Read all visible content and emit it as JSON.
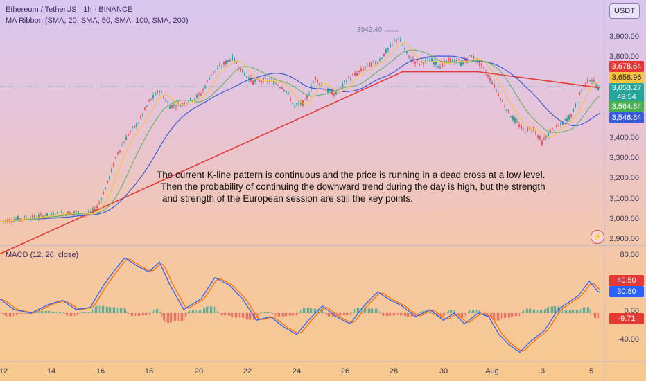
{
  "header": {
    "title": "Ethereum / TetherUS · 1h · BINANCE",
    "indicator": "MA Ribbon (SMA, 20, SMA, 50, SMA, 100, SMA, 200)",
    "currency": "USDT"
  },
  "macd_panel": {
    "label": "MACD (12, 26, close)",
    "axis": [
      "80.00",
      "40.00",
      "0.00",
      "-40.00"
    ],
    "tags": {
      "macd": "40.50",
      "signal": "30.80",
      "hist": "-9.71"
    }
  },
  "price_axis": [
    "3,900.00",
    "3,800.00",
    "3,700.00",
    "3,600.00",
    "3,500.00",
    "3,400.00",
    "3,300.00",
    "3,200.00",
    "3,100.00",
    "3,000.00",
    "2,900.00"
  ],
  "price_tags": {
    "ma200": "3,678.64",
    "last": "3,658.96",
    "current": "3,653.27",
    "countdown": "49:54",
    "ma50": "3,564.84",
    "ma100": "3,546.84"
  },
  "peak_label": "3942.49",
  "annotation": {
    "line1": "The current K-line pattern is continuous and the price is running in a dead cross at a low level.",
    "line2": "Then the probability of continuing the downward trend during the day is high, but the strength",
    "line3": "and strength of the European session are still the key points."
  },
  "time_axis": [
    "12",
    "14",
    "16",
    "18",
    "20",
    "22",
    "24",
    "26",
    "28",
    "30",
    "Aug",
    "3",
    "5"
  ],
  "colors": {
    "up": "#26a69a",
    "down": "#ef5350",
    "ma20": "#f6c343",
    "ma50": "#6bb36b",
    "ma100": "#3a5bd9",
    "ma200": "#e53935",
    "macd": "#2962ff",
    "signal": "#ff6d00"
  },
  "chart_data": {
    "type": "candlestick",
    "symbol": "Ethereum / TetherUS",
    "interval": "1h",
    "ylim": [
      2880,
      3950
    ],
    "price_keypoints": [
      [
        0,
        2990
      ],
      [
        30,
        3005
      ],
      [
        60,
        3015
      ],
      [
        90,
        3030
      ],
      [
        110,
        3035
      ],
      [
        125,
        3020
      ],
      [
        140,
        3060
      ],
      [
        155,
        3180
      ],
      [
        170,
        3330
      ],
      [
        185,
        3420
      ],
      [
        200,
        3480
      ],
      [
        215,
        3580
      ],
      [
        230,
        3640
      ],
      [
        245,
        3560
      ],
      [
        260,
        3570
      ],
      [
        275,
        3590
      ],
      [
        290,
        3620
      ],
      [
        305,
        3720
      ],
      [
        320,
        3760
      ],
      [
        335,
        3800
      ],
      [
        350,
        3730
      ],
      [
        365,
        3680
      ],
      [
        380,
        3690
      ],
      [
        395,
        3680
      ],
      [
        410,
        3650
      ],
      [
        425,
        3560
      ],
      [
        440,
        3580
      ],
      [
        455,
        3700
      ],
      [
        470,
        3640
      ],
      [
        485,
        3620
      ],
      [
        500,
        3690
      ],
      [
        515,
        3720
      ],
      [
        530,
        3760
      ],
      [
        545,
        3780
      ],
      [
        560,
        3840
      ],
      [
        575,
        3900
      ],
      [
        590,
        3800
      ],
      [
        605,
        3770
      ],
      [
        620,
        3790
      ],
      [
        635,
        3760
      ],
      [
        650,
        3790
      ],
      [
        665,
        3770
      ],
      [
        680,
        3810
      ],
      [
        695,
        3760
      ],
      [
        710,
        3680
      ],
      [
        725,
        3580
      ],
      [
        740,
        3500
      ],
      [
        755,
        3440
      ],
      [
        770,
        3450
      ],
      [
        782,
        3380
      ],
      [
        795,
        3440
      ],
      [
        810,
        3470
      ],
      [
        825,
        3520
      ],
      [
        840,
        3650
      ],
      [
        852,
        3700
      ],
      [
        863,
        3650
      ]
    ],
    "macd_keypoints": [
      [
        0,
        20
      ],
      [
        20,
        5
      ],
      [
        45,
        0
      ],
      [
        70,
        12
      ],
      [
        90,
        18
      ],
      [
        110,
        5
      ],
      [
        130,
        8
      ],
      [
        150,
        40
      ],
      [
        165,
        60
      ],
      [
        180,
        78
      ],
      [
        200,
        65
      ],
      [
        215,
        58
      ],
      [
        230,
        72
      ],
      [
        245,
        40
      ],
      [
        265,
        5
      ],
      [
        290,
        20
      ],
      [
        310,
        50
      ],
      [
        330,
        40
      ],
      [
        350,
        20
      ],
      [
        370,
        -10
      ],
      [
        390,
        -5
      ],
      [
        410,
        -20
      ],
      [
        428,
        -30
      ],
      [
        445,
        -10
      ],
      [
        465,
        10
      ],
      [
        485,
        -5
      ],
      [
        505,
        -15
      ],
      [
        525,
        10
      ],
      [
        545,
        30
      ],
      [
        560,
        20
      ],
      [
        580,
        10
      ],
      [
        600,
        -5
      ],
      [
        620,
        5
      ],
      [
        640,
        -10
      ],
      [
        655,
        0
      ],
      [
        670,
        -15
      ],
      [
        690,
        0
      ],
      [
        705,
        -5
      ],
      [
        720,
        -30
      ],
      [
        735,
        -45
      ],
      [
        750,
        -55
      ],
      [
        765,
        -40
      ],
      [
        785,
        -25
      ],
      [
        805,
        5
      ],
      [
        820,
        15
      ],
      [
        835,
        25
      ],
      [
        850,
        45
      ],
      [
        863,
        30
      ]
    ],
    "series": [
      {
        "name": "MA 20"
      },
      {
        "name": "MA 50"
      },
      {
        "name": "MA 100"
      },
      {
        "name": "MA 200"
      },
      {
        "name": "MACD"
      },
      {
        "name": "Signal"
      }
    ]
  }
}
